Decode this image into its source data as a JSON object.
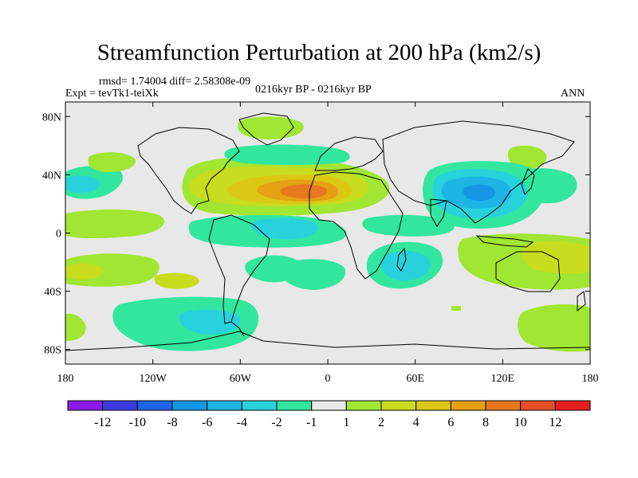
{
  "title": "Streamfunction Perturbation at 200 hPa (km2/s)",
  "stats_text": "rmsd= 1.74004 diff= 2.58308e-09",
  "experiment_text": "Expt = tevTk1-teiXk",
  "period_text": "0216kyr BP - 0216kyr BP",
  "season_text": "ANN",
  "lat_labels": [
    "80N",
    "40N",
    "0",
    "40S",
    "80S"
  ],
  "lon_labels": [
    "180",
    "120W",
    "60W",
    "0",
    "60E",
    "120E",
    "180"
  ],
  "colorbar": {
    "labels": [
      "-12",
      "-10",
      "-8",
      "-6",
      "-4",
      "-2",
      "-1",
      "1",
      "2",
      "4",
      "6",
      "8",
      "10",
      "12"
    ],
    "colors": [
      "#8c1ae8",
      "#3c3ce0",
      "#1e64e6",
      "#1496e6",
      "#1eb4e6",
      "#28d2dc",
      "#32e6a0",
      "#e8e8e8",
      "#a0e632",
      "#c8dc1e",
      "#dcc814",
      "#e6a014",
      "#e6781e",
      "#e65028",
      "#e61e1e"
    ]
  },
  "map_extent": {
    "lon": [
      -180,
      180
    ],
    "lat": [
      -90,
      90
    ]
  },
  "chart_data": {
    "type": "heatmap",
    "title": "Streamfunction Perturbation at 200 hPa (km2/s)",
    "units": "km2/s",
    "contour_levels": [
      -12,
      -10,
      -8,
      -6,
      -4,
      -2,
      -1,
      1,
      2,
      4,
      6,
      8,
      10,
      12
    ],
    "regions": [
      {
        "name": "north-atlantic-africa-positive",
        "level": 2,
        "lon": [
          -95,
          55
        ],
        "lat": [
          15,
          50
        ]
      },
      {
        "name": "north-atlantic-africa-positive-core",
        "level": 4,
        "lon": [
          -70,
          30
        ],
        "lat": [
          25,
          45
        ]
      },
      {
        "name": "sahara-positive-max",
        "level": 8,
        "lon": [
          -30,
          15
        ],
        "lat": [
          28,
          40
        ]
      },
      {
        "name": "asia-negative",
        "level": -2,
        "lon": [
          70,
          150
        ],
        "lat": [
          10,
          55
        ]
      },
      {
        "name": "asia-negative-core",
        "level": -6,
        "lon": [
          85,
          125
        ],
        "lat": [
          25,
          40
        ]
      },
      {
        "name": "southern-africa-negative",
        "level": -2,
        "lon": [
          40,
          80
        ],
        "lat": [
          -35,
          -5
        ]
      },
      {
        "name": "australia-positive",
        "level": 2,
        "lon": [
          100,
          180
        ],
        "lat": [
          -40,
          -5
        ]
      },
      {
        "name": "south-pacific-positive",
        "level": 4,
        "lon": [
          -170,
          -140
        ],
        "lat": [
          -30,
          -15
        ]
      },
      {
        "name": "southern-ocean-negative",
        "level": -2,
        "lon": [
          -120,
          -20
        ],
        "lat": [
          -80,
          -45
        ]
      },
      {
        "name": "greenland-positive",
        "level": 2,
        "lon": [
          -60,
          -20
        ],
        "lat": [
          70,
          85
        ]
      }
    ]
  }
}
